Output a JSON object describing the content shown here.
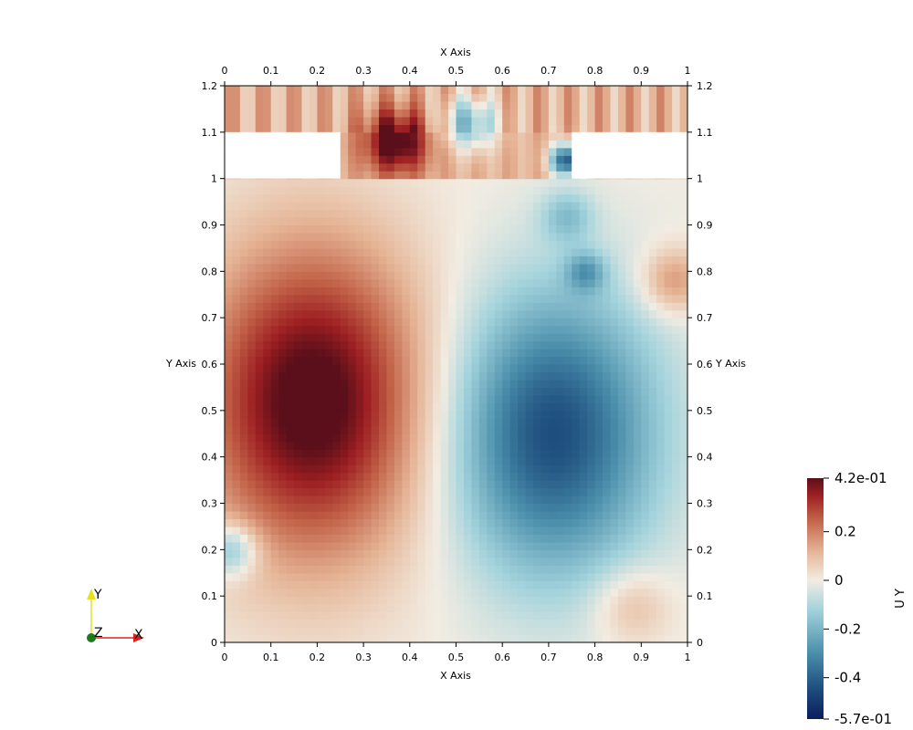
{
  "chart_data": {
    "type": "heatmap",
    "field": "U Y",
    "xlabel": "X Axis",
    "ylabel": "Y Axis",
    "xlim": [
      0,
      1
    ],
    "ylim": [
      0,
      1.2
    ],
    "x_ticks": [
      0,
      0.1,
      0.2,
      0.3,
      0.4,
      0.5,
      0.6,
      0.7,
      0.8,
      0.9,
      1
    ],
    "x_tick_labels": [
      "0",
      "0.1",
      "0.2",
      "0.3",
      "0.4",
      "0.5",
      "0.6",
      "0.7",
      "0.8",
      "0.9",
      "1"
    ],
    "y_ticks": [
      0,
      0.1,
      0.2,
      0.3,
      0.4,
      0.5,
      0.6,
      0.7,
      0.8,
      0.9,
      1,
      1.1,
      1.2
    ],
    "y_tick_labels": [
      "0",
      "0.1",
      "0.2",
      "0.3",
      "0.4",
      "0.5",
      "0.6",
      "0.7",
      "0.8",
      "0.9",
      "1",
      "1.1",
      "1.2"
    ],
    "empty_regions": [
      {
        "x": [
          0,
          0.25
        ],
        "y": [
          1.0,
          1.1
        ]
      },
      {
        "x": [
          0.75,
          1.0
        ],
        "y": [
          1.0,
          1.1
        ]
      }
    ],
    "colorbar": {
      "title": "U Y",
      "range": [
        -0.57,
        0.42
      ],
      "tick_values": [
        0.42,
        0.2,
        0,
        -0.2,
        -0.4,
        -0.57
      ],
      "tick_labels": [
        "4.2e-01",
        "0.2",
        "0",
        "-0.2",
        "-0.4",
        "-5.7e-01"
      ],
      "colormap": "blue-white-red",
      "color_stops": [
        {
          "value": -0.57,
          "color": "#0b1d5e"
        },
        {
          "value": -0.45,
          "color": "#1c4c7c"
        },
        {
          "value": -0.3,
          "color": "#4a8eab"
        },
        {
          "value": -0.12,
          "color": "#a3d3dc"
        },
        {
          "value": 0.0,
          "color": "#f2ece2"
        },
        {
          "value": 0.12,
          "color": "#e5b495"
        },
        {
          "value": 0.25,
          "color": "#c26248"
        },
        {
          "value": 0.35,
          "color": "#9d1f22"
        },
        {
          "value": 0.42,
          "color": "#5a0f1a"
        }
      ]
    },
    "grid": false
  },
  "orientation_axes": {
    "x_label": "X",
    "y_label": "Y",
    "z_label": "Z",
    "x_color": "#e0201b",
    "y_color": "#e4e022",
    "z_color": "#1e7a1e"
  }
}
